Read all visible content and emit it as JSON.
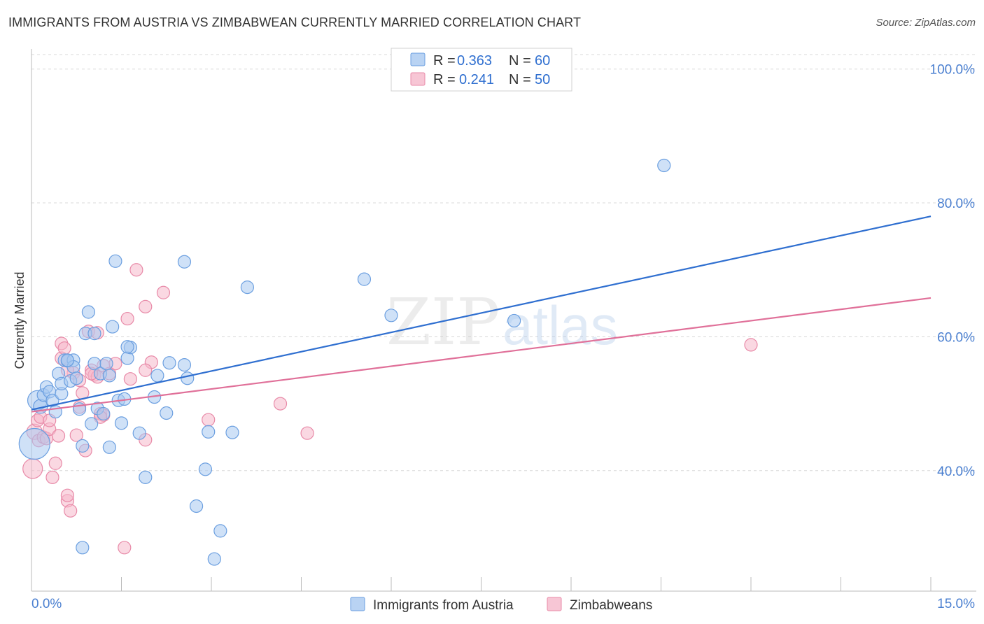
{
  "header": {
    "title": "IMMIGRANTS FROM AUSTRIA VS ZIMBABWEAN CURRENTLY MARRIED CORRELATION CHART",
    "source": "Source: ZipAtlas.com"
  },
  "watermark": {
    "part1": "ZIP",
    "part2": "atlas"
  },
  "colors": {
    "blue_fill": "#a8c8f0",
    "blue_stroke": "#6b9fe0",
    "blue_line": "#2f6fd0",
    "pink_fill": "#f5b8cb",
    "pink_stroke": "#e88aa8",
    "pink_line": "#e07099",
    "axis_text": "#4a7fd0",
    "grid": "#d8d8d8"
  },
  "legend": {
    "rows": [
      {
        "r_label": "R =",
        "r_value": "0.363",
        "n_label": "N =",
        "n_value": "60"
      },
      {
        "r_label": "R =",
        "r_value": "0.241",
        "n_label": "N =",
        "n_value": "50"
      }
    ]
  },
  "bottom_legend": [
    "Immigrants from Austria",
    "Zimbabweans"
  ],
  "chart_data": {
    "type": "scatter",
    "title": "IMMIGRANTS FROM AUSTRIA VS ZIMBABWEAN CURRENTLY MARRIED CORRELATION CHART",
    "xlabel": "",
    "ylabel": "Currently Married",
    "xlim": [
      0,
      15
    ],
    "ylim": [
      22,
      103
    ],
    "x_tick_labels": [
      "0.0%",
      "15.0%"
    ],
    "y_ticks": [
      40,
      60,
      80,
      100
    ],
    "y_tick_labels": [
      "40.0%",
      "60.0%",
      "80.0%",
      "100.0%"
    ],
    "x_minor_ticks": [
      0,
      1.5,
      3,
      4.5,
      6,
      7.5,
      9,
      10.5,
      12,
      13.5,
      15
    ],
    "series": [
      {
        "name": "Immigrants from Austria",
        "R": 0.363,
        "N": 60,
        "trend": {
          "x": [
            0,
            15
          ],
          "y": [
            49.1,
            78.0
          ]
        },
        "points": [
          [
            0.05,
            44.0,
            22
          ],
          [
            0.1,
            50.5,
            14
          ],
          [
            0.15,
            49.6,
            10
          ],
          [
            0.2,
            51.3,
            9
          ],
          [
            0.25,
            52.5,
            9
          ],
          [
            0.3,
            51.8,
            9
          ],
          [
            0.35,
            50.5,
            9
          ],
          [
            0.4,
            48.8,
            9
          ],
          [
            0.45,
            54.5,
            9
          ],
          [
            0.5,
            51.5,
            9
          ],
          [
            0.5,
            53.0,
            9
          ],
          [
            0.55,
            56.5,
            9
          ],
          [
            0.6,
            56.4,
            9
          ],
          [
            0.65,
            53.4,
            9
          ],
          [
            0.7,
            56.5,
            9
          ],
          [
            0.7,
            55.5,
            9
          ],
          [
            0.75,
            53.8,
            9
          ],
          [
            0.8,
            49.2,
            9
          ],
          [
            0.85,
            43.7,
            9
          ],
          [
            0.85,
            28.5,
            9
          ],
          [
            0.9,
            60.5,
            9
          ],
          [
            0.95,
            63.7,
            9
          ],
          [
            1.0,
            47.0,
            9
          ],
          [
            1.05,
            56.0,
            9
          ],
          [
            1.05,
            60.5,
            9
          ],
          [
            1.1,
            49.3,
            9
          ],
          [
            1.15,
            54.5,
            9
          ],
          [
            1.2,
            48.5,
            9
          ],
          [
            1.25,
            56.0,
            9
          ],
          [
            1.3,
            43.5,
            9
          ],
          [
            1.3,
            54.2,
            9
          ],
          [
            1.35,
            61.5,
            9
          ],
          [
            1.4,
            71.3,
            9
          ],
          [
            1.45,
            50.5,
            9
          ],
          [
            1.5,
            47.1,
            9
          ],
          [
            1.55,
            50.7,
            9
          ],
          [
            1.6,
            56.8,
            9
          ],
          [
            1.65,
            58.4,
            9
          ],
          [
            1.8,
            45.6,
            9
          ],
          [
            1.9,
            39.0,
            9
          ],
          [
            2.05,
            51.0,
            9
          ],
          [
            2.1,
            54.2,
            9
          ],
          [
            2.25,
            48.6,
            9
          ],
          [
            2.3,
            56.1,
            9
          ],
          [
            2.55,
            55.8,
            9
          ],
          [
            2.6,
            53.8,
            9
          ],
          [
            2.55,
            71.2,
            9
          ],
          [
            2.75,
            34.7,
            9
          ],
          [
            2.9,
            40.2,
            9
          ],
          [
            2.95,
            45.8,
            9
          ],
          [
            3.05,
            26.8,
            9
          ],
          [
            3.15,
            31.0,
            9
          ],
          [
            3.35,
            45.7,
            9
          ],
          [
            3.6,
            67.4,
            9
          ],
          [
            5.55,
            68.6,
            9
          ],
          [
            6.0,
            63.2,
            9
          ],
          [
            8.05,
            62.4,
            9
          ],
          [
            10.55,
            85.6,
            9
          ],
          [
            0.6,
            56.5,
            9
          ],
          [
            1.6,
            58.5,
            9
          ]
        ]
      },
      {
        "name": "Zimbabweans",
        "R": 0.241,
        "N": 50,
        "trend": {
          "x": [
            0,
            15
          ],
          "y": [
            48.8,
            65.8
          ]
        },
        "points": [
          [
            0.02,
            40.3,
            14
          ],
          [
            0.05,
            45.8,
            11
          ],
          [
            0.1,
            47.5,
            9
          ],
          [
            0.12,
            44.5,
            9
          ],
          [
            0.15,
            48.0,
            9
          ],
          [
            0.2,
            45.0,
            9
          ],
          [
            0.25,
            44.8,
            9
          ],
          [
            0.3,
            46.2,
            9
          ],
          [
            0.35,
            39.0,
            9
          ],
          [
            0.4,
            41.1,
            9
          ],
          [
            0.45,
            45.2,
            9
          ],
          [
            0.5,
            56.8,
            9
          ],
          [
            0.5,
            59.0,
            9
          ],
          [
            0.55,
            58.3,
            9
          ],
          [
            0.6,
            35.5,
            9
          ],
          [
            0.6,
            36.3,
            9
          ],
          [
            0.65,
            34.0,
            9
          ],
          [
            0.7,
            54.6,
            9
          ],
          [
            0.75,
            45.3,
            9
          ],
          [
            0.8,
            49.5,
            9
          ],
          [
            0.85,
            51.6,
            9
          ],
          [
            0.9,
            43.0,
            9
          ],
          [
            0.95,
            60.8,
            9
          ],
          [
            1.0,
            55.0,
            9
          ],
          [
            1.05,
            54.3,
            9
          ],
          [
            1.1,
            54.0,
            9
          ],
          [
            1.1,
            60.6,
            9
          ],
          [
            1.15,
            48.5,
            9
          ],
          [
            1.2,
            48.3,
            9
          ],
          [
            1.2,
            55.7,
            9
          ],
          [
            1.3,
            54.5,
            9
          ],
          [
            1.4,
            56.0,
            9
          ],
          [
            1.55,
            28.5,
            9
          ],
          [
            1.6,
            62.7,
            9
          ],
          [
            1.65,
            53.7,
            9
          ],
          [
            1.75,
            70.0,
            9
          ],
          [
            1.9,
            64.5,
            9
          ],
          [
            1.9,
            44.6,
            9
          ],
          [
            2.0,
            56.2,
            9
          ],
          [
            2.2,
            66.6,
            9
          ],
          [
            2.95,
            47.6,
            9
          ],
          [
            4.15,
            50.0,
            9
          ],
          [
            4.6,
            45.6,
            9
          ],
          [
            12.0,
            58.8,
            9
          ],
          [
            0.6,
            55.0,
            9
          ],
          [
            0.8,
            53.5,
            9
          ],
          [
            1.0,
            54.5,
            9
          ],
          [
            1.15,
            48.0,
            9
          ],
          [
            1.9,
            55.0,
            9
          ],
          [
            0.3,
            47.5,
            9
          ]
        ]
      }
    ]
  }
}
